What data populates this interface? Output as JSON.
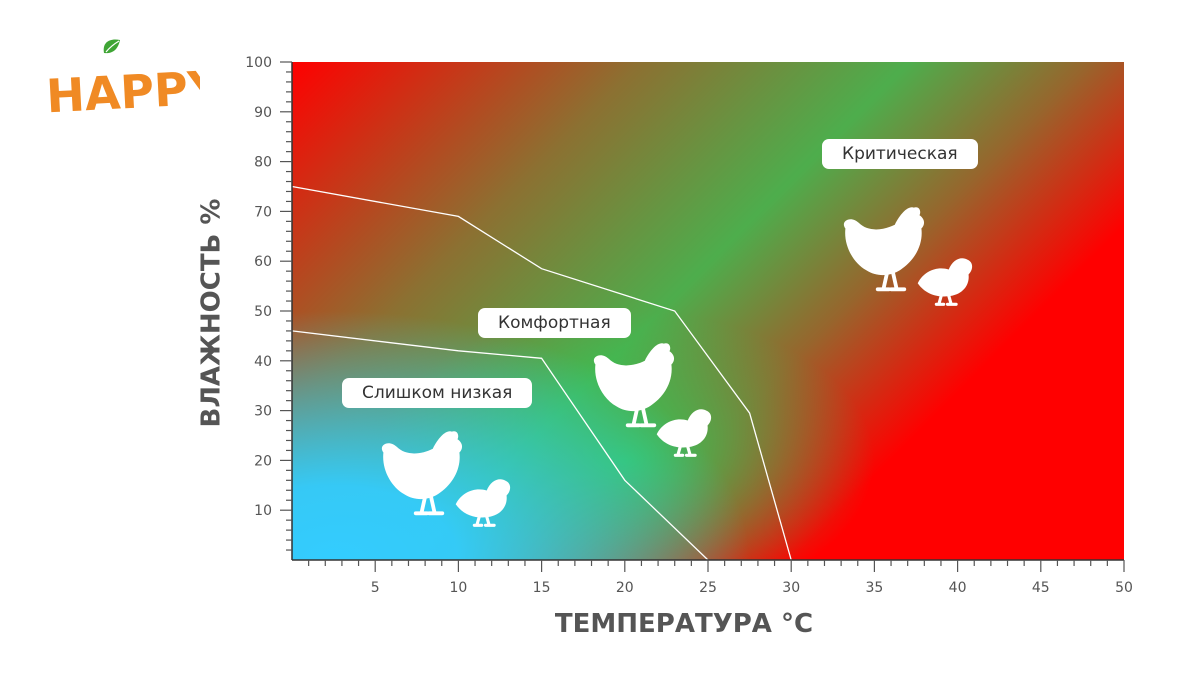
{
  "brand": {
    "name": "HAPPY",
    "accent_color": "#F08A24",
    "leaf_color": "#3FA535"
  },
  "chart_data": {
    "type": "area",
    "title": "",
    "xlabel": "ТЕМПЕРАТУРА °С",
    "ylabel": "ВЛАЖНОСТЬ %",
    "xlim": [
      0,
      50
    ],
    "ylim": [
      0,
      100
    ],
    "x_ticks": [
      5,
      10,
      15,
      20,
      25,
      30,
      35,
      40,
      45,
      50
    ],
    "y_ticks": [
      10,
      20,
      30,
      40,
      50,
      60,
      70,
      80,
      90,
      100
    ],
    "grid": false,
    "boundaries": [
      {
        "name": "lower",
        "points": [
          [
            0,
            46
          ],
          [
            10,
            42
          ],
          [
            15,
            40.5
          ],
          [
            20,
            16
          ],
          [
            25,
            0
          ]
        ]
      },
      {
        "name": "upper",
        "points": [
          [
            0,
            75
          ],
          [
            10,
            69
          ],
          [
            15,
            58.5
          ],
          [
            23,
            50
          ],
          [
            27.5,
            29.5
          ],
          [
            30,
            0
          ]
        ]
      }
    ],
    "zones": [
      {
        "label": "Слишком низкая",
        "color": "#33CCFF",
        "icons": [
          "chicken-icon",
          "quail-icon"
        ]
      },
      {
        "label": "Комфортная",
        "color": "#2ECC5A",
        "icons": [
          "chicken-icon",
          "quail-icon"
        ]
      },
      {
        "label": "Критическая",
        "color": "#FF0000",
        "icons": [
          "chicken-icon",
          "quail-icon"
        ]
      }
    ]
  }
}
